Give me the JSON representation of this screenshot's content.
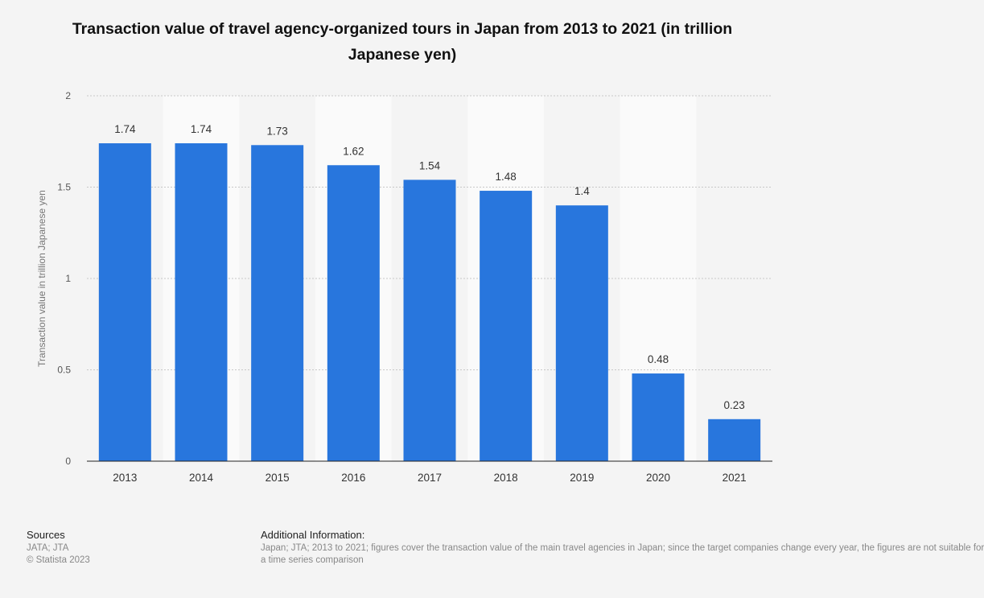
{
  "chart_data": {
    "type": "bar",
    "title": "Transaction value of travel agency-organized tours in Japan from 2013 to 2021 (in trillion Japanese yen)",
    "categories": [
      "2013",
      "2014",
      "2015",
      "2016",
      "2017",
      "2018",
      "2019",
      "2020",
      "2021"
    ],
    "values": [
      1.74,
      1.74,
      1.73,
      1.62,
      1.54,
      1.48,
      1.4,
      0.48,
      0.23
    ],
    "value_labels": [
      "1.74",
      "1.74",
      "1.73",
      "1.62",
      "1.54",
      "1.48",
      "1.4",
      "0.48",
      "0.23"
    ],
    "xlabel": "",
    "ylabel": "Transaction value in trillion Japanese yen",
    "ylim": [
      0,
      2
    ],
    "yticks": [
      "0",
      "0.5",
      "1",
      "1.5",
      "2"
    ],
    "bar_color": "#2876dd",
    "grid": true
  },
  "footer": {
    "sources_heading": "Sources",
    "sources_line1": "JATA; JTA",
    "sources_line2": "© Statista 2023",
    "additional_heading": "Additional Information:",
    "additional_line1": "Japan; JTA; 2013 to 2021; figures cover the transaction value of the main travel agencies in Japan; since the target companies change every year, the figures are not suitable for",
    "additional_line2": "a time series comparison"
  }
}
